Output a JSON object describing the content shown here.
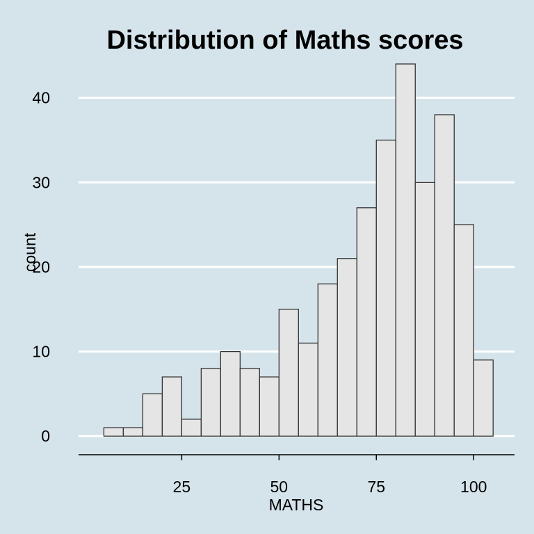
{
  "chart_data": {
    "type": "bar",
    "title": "Distribution of Maths scores",
    "xlabel": "MATHS",
    "ylabel": "count",
    "bin_width": 5,
    "bins": [
      {
        "x0": 5,
        "x1": 10,
        "count": 1
      },
      {
        "x0": 10,
        "x1": 15,
        "count": 1
      },
      {
        "x0": 15,
        "x1": 20,
        "count": 5
      },
      {
        "x0": 20,
        "x1": 25,
        "count": 7
      },
      {
        "x0": 25,
        "x1": 30,
        "count": 2
      },
      {
        "x0": 30,
        "x1": 35,
        "count": 8
      },
      {
        "x0": 35,
        "x1": 40,
        "count": 10
      },
      {
        "x0": 40,
        "x1": 45,
        "count": 8
      },
      {
        "x0": 45,
        "x1": 50,
        "count": 7
      },
      {
        "x0": 50,
        "x1": 55,
        "count": 15
      },
      {
        "x0": 55,
        "x1": 60,
        "count": 11
      },
      {
        "x0": 60,
        "x1": 65,
        "count": 18
      },
      {
        "x0": 65,
        "x1": 70,
        "count": 21
      },
      {
        "x0": 70,
        "x1": 75,
        "count": 27
      },
      {
        "x0": 75,
        "x1": 80,
        "count": 35
      },
      {
        "x0": 80,
        "x1": 85,
        "count": 44
      },
      {
        "x0": 85,
        "x1": 90,
        "count": 30
      },
      {
        "x0": 90,
        "x1": 95,
        "count": 38
      },
      {
        "x0": 95,
        "x1": 100,
        "count": 25
      },
      {
        "x0": 100,
        "x1": 105,
        "count": 9
      }
    ],
    "x_ticks": [
      25,
      50,
      75,
      100
    ],
    "y_ticks": [
      0,
      10,
      20,
      30,
      40
    ],
    "xlim": [
      -1.5,
      110.5
    ],
    "ylim": [
      -2.2,
      44
    ],
    "grid": "horizontal major",
    "legend": "none",
    "colors": {
      "background": "#d5e4eb",
      "bar_fill": "#e5e5e5",
      "bar_stroke": "#333333",
      "gridline": "#ffffff",
      "axis": "#000000"
    }
  }
}
